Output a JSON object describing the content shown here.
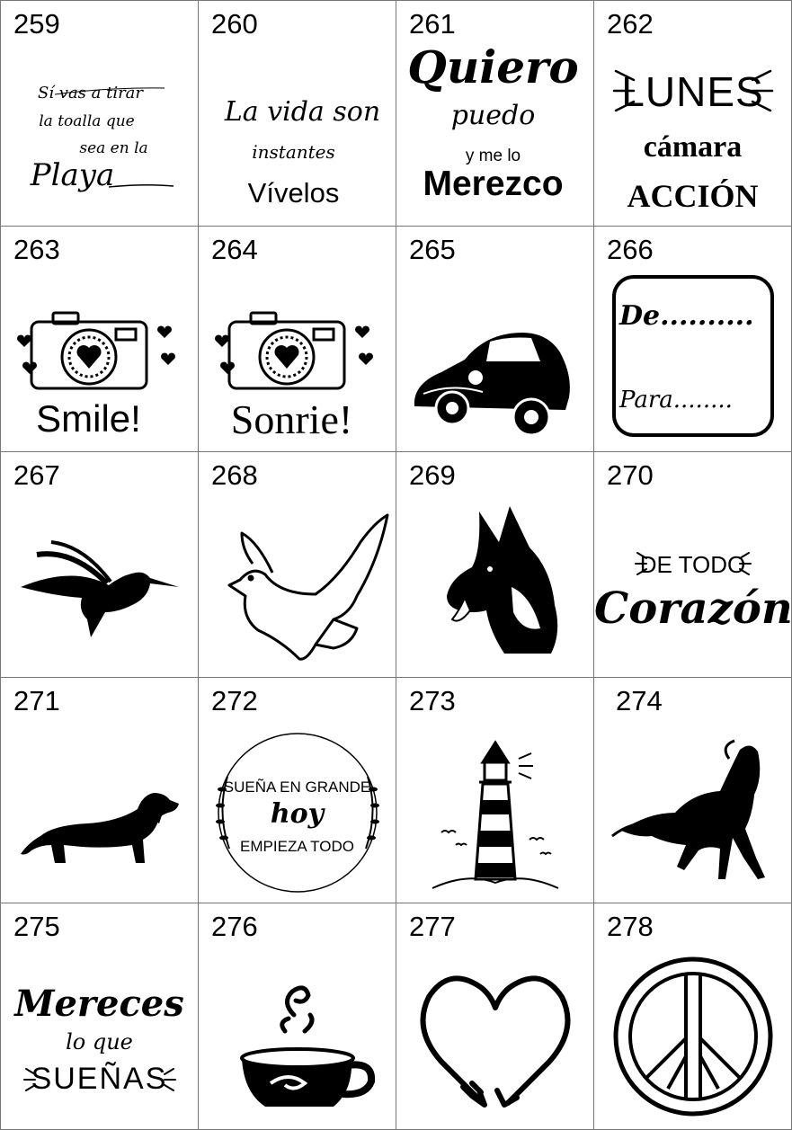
{
  "designs": [
    {
      "number": "259",
      "lines": [
        "Sí vas a tirar",
        "la toalla que",
        "sea en la",
        "Playa"
      ]
    },
    {
      "number": "260",
      "lines": [
        "La vida son",
        "instantes",
        "Vívelos"
      ]
    },
    {
      "number": "261",
      "lines": [
        "Quiero",
        "puedo",
        "y me lo",
        "Merezco"
      ]
    },
    {
      "number": "262",
      "lines": [
        "LUNES",
        "cámara",
        "ACCIÓN"
      ]
    },
    {
      "number": "263",
      "lines": [
        "Smile!"
      ],
      "icon": "camera-heart-icon"
    },
    {
      "number": "264",
      "lines": [
        "Sonrie!"
      ],
      "icon": "camera-heart-icon"
    },
    {
      "number": "265",
      "lines": [],
      "icon": "vw-beetle-car-icon"
    },
    {
      "number": "266",
      "lines": [
        "De..........",
        "Para........"
      ]
    },
    {
      "number": "267",
      "lines": [],
      "icon": "hummingbird-icon"
    },
    {
      "number": "268",
      "lines": [],
      "icon": "dove-icon"
    },
    {
      "number": "269",
      "lines": [],
      "icon": "german-shepherd-icon"
    },
    {
      "number": "270",
      "lines": [
        "DE TODO",
        "Corazón"
      ]
    },
    {
      "number": "271",
      "lines": [],
      "icon": "dachshund-icon"
    },
    {
      "number": "272",
      "lines": [
        "SUEÑA EN GRANDE",
        "hoy",
        "EMPIEZA TODO"
      ]
    },
    {
      "number": "273",
      "lines": [],
      "icon": "lighthouse-icon"
    },
    {
      "number": "274",
      "lines": [],
      "icon": "horse-icon"
    },
    {
      "number": "275",
      "lines": [
        "Mereces",
        "lo que",
        "SUEÑAS"
      ]
    },
    {
      "number": "276",
      "lines": [],
      "icon": "coffee-cup-icon"
    },
    {
      "number": "277",
      "lines": [],
      "icon": "arrow-heart-icon"
    },
    {
      "number": "278",
      "lines": [],
      "icon": "peace-sign-icon"
    }
  ],
  "colors": {
    "ink": "#000000",
    "border": "#777777",
    "background": "#ffffff"
  }
}
